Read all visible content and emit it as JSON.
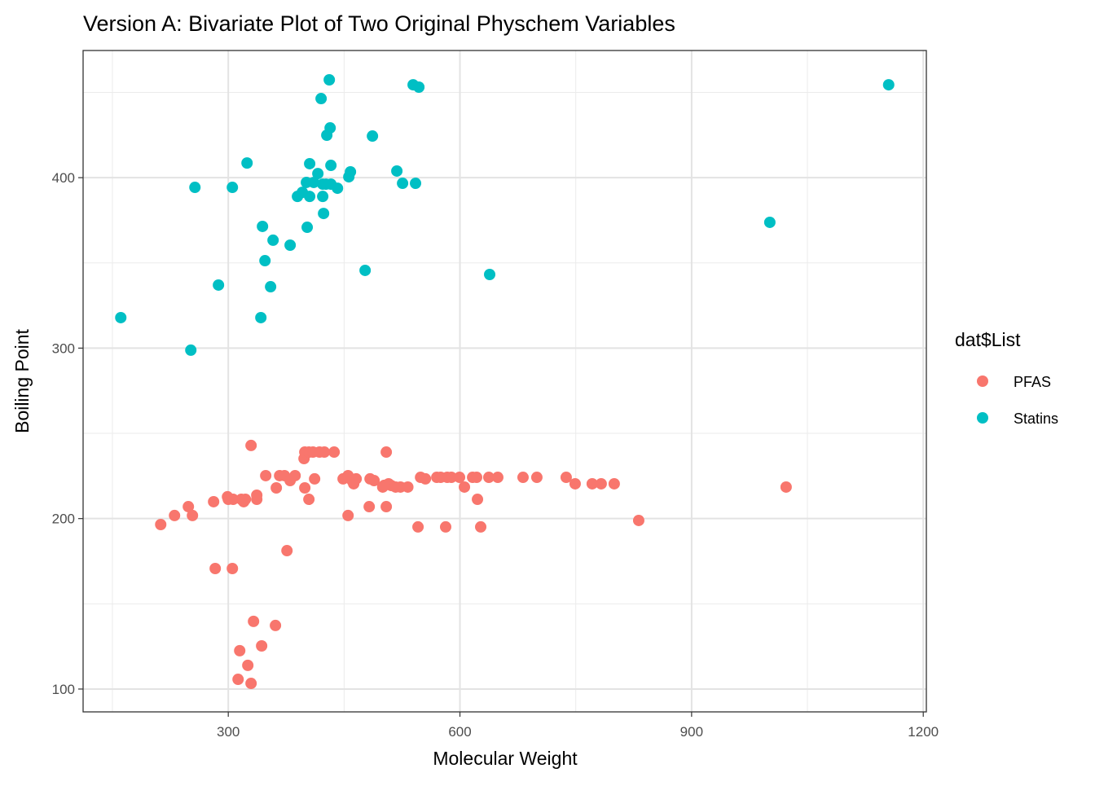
{
  "chart_data": {
    "type": "scatter",
    "title": "Version A: Bivariate Plot of Two Original Physchem Variables",
    "xlabel": "Molecular Weight",
    "ylabel": "Boiling Point",
    "xlim": [
      112,
      1204
    ],
    "ylim": [
      86.6,
      474.6
    ],
    "xticks": [
      300,
      600,
      900,
      1200
    ],
    "yticks": [
      100,
      200,
      300,
      400
    ],
    "xtick_labels": [
      "300",
      "600",
      "900",
      "1200"
    ],
    "ytick_labels": [
      "100",
      "200",
      "300",
      "400"
    ],
    "grid": true,
    "legend": {
      "title": "dat$List",
      "position": "right",
      "entries": [
        "PFAS",
        "Statins"
      ]
    },
    "series": [
      {
        "name": "PFAS",
        "color": "#F8766D",
        "points": [
          [
            212.5,
            196.5
          ],
          [
            230.4,
            201.8
          ],
          [
            248.3,
            207
          ],
          [
            253.6,
            201.8
          ],
          [
            281,
            209.9
          ],
          [
            283.1,
            170.7
          ],
          [
            299,
            212.8
          ],
          [
            300,
            211.3
          ],
          [
            306.3,
            211.3
          ],
          [
            305.3,
            170.7
          ],
          [
            316.9,
            211.3
          ],
          [
            320,
            209.9
          ],
          [
            322.2,
            211.3
          ],
          [
            329.5,
            242.9
          ],
          [
            336.9,
            211.3
          ],
          [
            336.9,
            213.7
          ],
          [
            348.5,
            225.2
          ],
          [
            362.2,
            218
          ],
          [
            366.5,
            225.2
          ],
          [
            372.8,
            225.2
          ],
          [
            380.1,
            222.3
          ],
          [
            386.5,
            225.2
          ],
          [
            398.1,
            235.2
          ],
          [
            399.1,
            239
          ],
          [
            404.4,
            239
          ],
          [
            409.7,
            239
          ],
          [
            399.1,
            218
          ],
          [
            404.4,
            211.3
          ],
          [
            411.8,
            223.3
          ],
          [
            418.1,
            239
          ],
          [
            424.4,
            239
          ],
          [
            437.1,
            239
          ],
          [
            448.7,
            223.3
          ],
          [
            455.1,
            225.2
          ],
          [
            460.3,
            222.3
          ],
          [
            462.4,
            220.4
          ],
          [
            465.6,
            223.3
          ],
          [
            483.6,
            223.3
          ],
          [
            488.8,
            222.3
          ],
          [
            511,
            219.4
          ],
          [
            504.6,
            239
          ],
          [
            504.6,
            207
          ],
          [
            482.5,
            207
          ],
          [
            455.1,
            201.8
          ],
          [
            376,
            181.2
          ],
          [
            332.7,
            139.7
          ],
          [
            361.1,
            137.3
          ],
          [
            343.2,
            125.3
          ],
          [
            314.8,
            122.5
          ],
          [
            325.3,
            113.9
          ],
          [
            312.7,
            105.7
          ],
          [
            329.5,
            103.3
          ],
          [
            500,
            218.5
          ],
          [
            507.6,
            220.4
          ],
          [
            502,
            219.5
          ],
          [
            523,
            218.5
          ],
          [
            532.5,
            218.5
          ],
          [
            516.7,
            218.5
          ],
          [
            545.7,
            195.1
          ],
          [
            549,
            224.2
          ],
          [
            555.3,
            223.3
          ],
          [
            570,
            224.2
          ],
          [
            575,
            224.2
          ],
          [
            583.6,
            224.2
          ],
          [
            588.9,
            224.2
          ],
          [
            599.5,
            224.2
          ],
          [
            605.8,
            218.5
          ],
          [
            581.5,
            195.1
          ],
          [
            616.4,
            224.2
          ],
          [
            621.6,
            224.2
          ],
          [
            622.7,
            211.3
          ],
          [
            626.9,
            195.1
          ],
          [
            637.4,
            224.2
          ],
          [
            649,
            224.2
          ],
          [
            681.7,
            224.2
          ],
          [
            699.6,
            224.2
          ],
          [
            737.6,
            224.2
          ],
          [
            749.2,
            220.4
          ],
          [
            771.3,
            220.4
          ],
          [
            782.9,
            220.4
          ],
          [
            799.8,
            220.4
          ],
          [
            831.5,
            198.9
          ],
          [
            1022.4,
            218.5
          ]
        ]
      },
      {
        "name": "Statins",
        "color": "#00BFC4",
        "points": [
          [
            160.8,
            317.9
          ],
          [
            256.8,
            394.3
          ],
          [
            305.3,
            394.3
          ],
          [
            287.3,
            337
          ],
          [
            251.5,
            298.8
          ],
          [
            342.2,
            317.9
          ],
          [
            344.3,
            371.4
          ],
          [
            347.5,
            351.3
          ],
          [
            354.8,
            336
          ],
          [
            358,
            363.3
          ],
          [
            324.3,
            408.6
          ],
          [
            380.1,
            360.4
          ],
          [
            389.6,
            389
          ],
          [
            395.9,
            391.4
          ],
          [
            401.2,
            397.2
          ],
          [
            402.2,
            370.9
          ],
          [
            405.4,
            408.2
          ],
          [
            405.4,
            389
          ],
          [
            410.7,
            397.2
          ],
          [
            416,
            402.4
          ],
          [
            420.2,
            446.4
          ],
          [
            422.3,
            396.2
          ],
          [
            422.3,
            389
          ],
          [
            423.4,
            379
          ],
          [
            426.5,
            396.2
          ],
          [
            427.6,
            424.9
          ],
          [
            430.8,
            457.4
          ],
          [
            431.9,
            429.2
          ],
          [
            432.9,
            407.2
          ],
          [
            432.9,
            396.2
          ],
          [
            441.4,
            393.8
          ],
          [
            456.1,
            400.5
          ],
          [
            458.2,
            403.4
          ],
          [
            477.2,
            345.6
          ],
          [
            486.7,
            424.4
          ],
          [
            518.3,
            403.9
          ],
          [
            525.7,
            396.7
          ],
          [
            539.4,
            454.5
          ],
          [
            546.8,
            453.1
          ],
          [
            542.5,
            396.7
          ],
          [
            638.5,
            343.2
          ],
          [
            1001.3,
            373.8
          ],
          [
            1155.2,
            454.5
          ]
        ]
      }
    ]
  }
}
